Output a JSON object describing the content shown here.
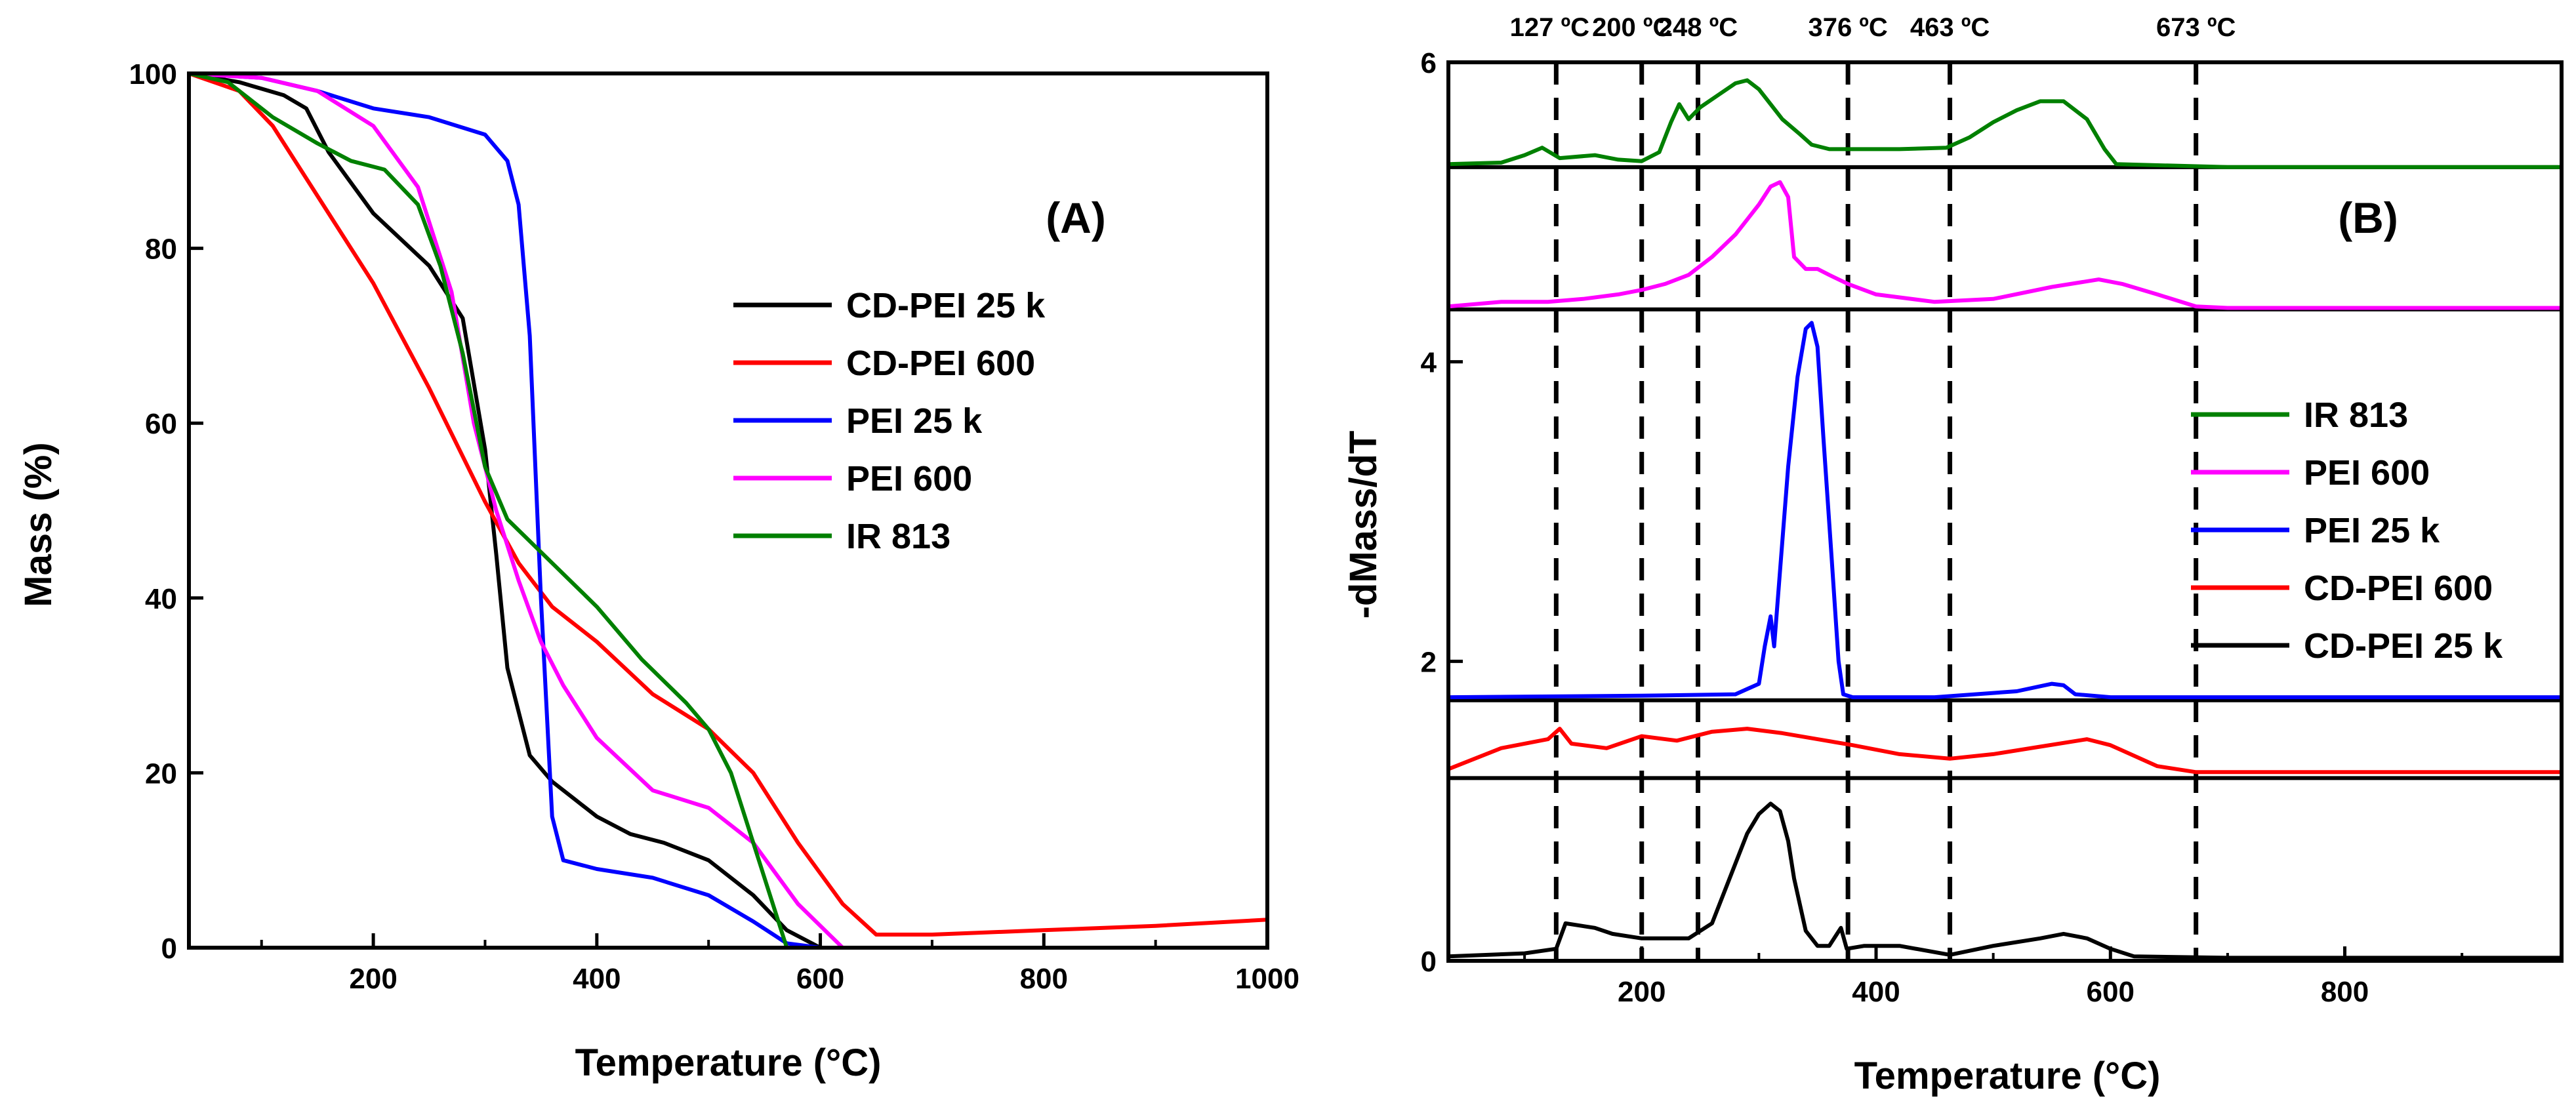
{
  "chart_data": [
    {
      "id": "A",
      "type": "line",
      "title": "",
      "panel_label": "(A)",
      "xlabel": "Temperature (°C)",
      "ylabel": "Mass (%)",
      "xlim": [
        35,
        1000
      ],
      "ylim": [
        0,
        100
      ],
      "xticks": [
        200,
        400,
        600,
        800,
        1000
      ],
      "yticks": [
        0,
        20,
        40,
        60,
        80,
        100
      ],
      "legend_position": "center-right",
      "series": [
        {
          "name": "CD-PEI 25 k",
          "color": "#000000",
          "x": [
            35,
            80,
            120,
            140,
            160,
            200,
            250,
            280,
            300,
            310,
            320,
            340,
            360,
            380,
            400,
            430,
            460,
            500,
            540,
            570,
            600
          ],
          "y": [
            100,
            99,
            97.5,
            96,
            91,
            84,
            78,
            72,
            57,
            45,
            32,
            22,
            19,
            17,
            15,
            13,
            12,
            10,
            6,
            2,
            0
          ]
        },
        {
          "name": "CD-PEI 600",
          "color": "#ff0000",
          "x": [
            35,
            80,
            110,
            140,
            200,
            250,
            300,
            330,
            360,
            400,
            450,
            500,
            540,
            580,
            620,
            650,
            680,
            700,
            800,
            900,
            1000
          ],
          "y": [
            100,
            98,
            94,
            88,
            76,
            64,
            51,
            44,
            39,
            35,
            29,
            25,
            20,
            12,
            5,
            1.5,
            1.5,
            1.5,
            2,
            2.5,
            3.2
          ],
          "label_points": []
        },
        {
          "name": "PEI 25 k",
          "color": "#0000ff",
          "x": [
            35,
            100,
            150,
            200,
            250,
            300,
            320,
            330,
            340,
            350,
            360,
            370,
            400,
            450,
            500,
            540,
            570,
            600
          ],
          "y": [
            100,
            99.5,
            98,
            96,
            95,
            93,
            90,
            85,
            70,
            40,
            15,
            10,
            9,
            8,
            6,
            3,
            0.5,
            0
          ]
        },
        {
          "name": "PEI 600",
          "color": "#ff00ff",
          "x": [
            35,
            100,
            150,
            200,
            240,
            270,
            290,
            310,
            330,
            350,
            370,
            400,
            450,
            500,
            540,
            580,
            620
          ],
          "y": [
            100,
            99.5,
            98,
            94,
            87,
            75,
            60,
            50,
            42,
            35,
            30,
            24,
            18,
            16,
            12,
            5,
            0
          ]
        },
        {
          "name": "IR 813",
          "color": "#008000",
          "x": [
            35,
            70,
            110,
            150,
            180,
            210,
            240,
            260,
            280,
            300,
            320,
            360,
            400,
            440,
            480,
            500,
            520,
            540,
            560,
            570
          ],
          "y": [
            100,
            99,
            95,
            92,
            90,
            89,
            85,
            78,
            68,
            55,
            49,
            44,
            39,
            33,
            28,
            25,
            20,
            12,
            4,
            0
          ]
        }
      ]
    },
    {
      "id": "B",
      "type": "line",
      "title": "",
      "panel_label": "(B)",
      "xlabel": "Temperature (°C)",
      "ylabel": "-dMass/dT",
      "xlim": [
        35,
        985
      ],
      "ylim": [
        0,
        6
      ],
      "xticks": [
        200,
        400,
        600,
        800
      ],
      "yticks": [
        0,
        2,
        4,
        6
      ],
      "legend_position": "right",
      "separator_lines_y": [
        1.22,
        1.74,
        4.35,
        5.3
      ],
      "dashed_lines": [
        {
          "x": 127,
          "label": "127 ºC"
        },
        {
          "x": 200,
          "label": "200 ºC"
        },
        {
          "x": 248,
          "label": "248 ºC"
        },
        {
          "x": 376,
          "label": "376 ºC"
        },
        {
          "x": 463,
          "label": "463 ºC"
        },
        {
          "x": 673,
          "label": "673  ºC"
        }
      ],
      "series": [
        {
          "name": "IR 813",
          "color": "#008000",
          "x": [
            35,
            80,
            100,
            115,
            130,
            160,
            180,
            200,
            215,
            225,
            232,
            240,
            250,
            265,
            280,
            290,
            300,
            310,
            320,
            335,
            345,
            360,
            380,
            420,
            460,
            480,
            500,
            520,
            540,
            560,
            580,
            595,
            605,
            700,
            985
          ],
          "y": [
            5.32,
            5.33,
            5.38,
            5.43,
            5.36,
            5.38,
            5.35,
            5.34,
            5.4,
            5.6,
            5.72,
            5.62,
            5.7,
            5.78,
            5.86,
            5.88,
            5.82,
            5.72,
            5.62,
            5.52,
            5.45,
            5.42,
            5.42,
            5.42,
            5.43,
            5.5,
            5.6,
            5.68,
            5.74,
            5.74,
            5.62,
            5.42,
            5.32,
            5.3,
            5.3
          ]
        },
        {
          "name": "PEI 600",
          "color": "#ff00ff",
          "x": [
            35,
            80,
            120,
            150,
            180,
            200,
            220,
            240,
            260,
            280,
            300,
            310,
            318,
            325,
            330,
            340,
            350,
            360,
            376,
            400,
            450,
            500,
            550,
            590,
            610,
            640,
            673,
            700,
            985
          ],
          "y": [
            4.37,
            4.4,
            4.4,
            4.42,
            4.45,
            4.48,
            4.52,
            4.58,
            4.7,
            4.85,
            5.05,
            5.17,
            5.2,
            5.1,
            4.7,
            4.62,
            4.62,
            4.58,
            4.52,
            4.45,
            4.4,
            4.42,
            4.5,
            4.55,
            4.52,
            4.45,
            4.37,
            4.36,
            4.36
          ]
        },
        {
          "name": "PEI 25 k",
          "color": "#0000ff",
          "x": [
            35,
            200,
            280,
            300,
            305,
            310,
            313,
            318,
            325,
            333,
            340,
            345,
            350,
            355,
            362,
            368,
            372,
            380,
            450,
            520,
            550,
            560,
            570,
            600,
            985
          ],
          "y": [
            1.76,
            1.77,
            1.78,
            1.85,
            2.1,
            2.3,
            2.1,
            2.6,
            3.3,
            3.9,
            4.22,
            4.26,
            4.1,
            3.5,
            2.7,
            2.0,
            1.78,
            1.76,
            1.76,
            1.8,
            1.85,
            1.84,
            1.78,
            1.76,
            1.76
          ]
        },
        {
          "name": "CD-PEI 600",
          "color": "#ff0000",
          "x": [
            35,
            80,
            120,
            130,
            140,
            170,
            200,
            230,
            260,
            290,
            320,
            350,
            380,
            420,
            463,
            500,
            540,
            580,
            600,
            640,
            673,
            700,
            985
          ],
          "y": [
            1.28,
            1.42,
            1.48,
            1.55,
            1.45,
            1.42,
            1.5,
            1.47,
            1.53,
            1.55,
            1.52,
            1.48,
            1.44,
            1.38,
            1.35,
            1.38,
            1.43,
            1.48,
            1.44,
            1.3,
            1.26,
            1.26,
            1.26
          ]
        },
        {
          "name": "CD-PEI 25 k",
          "color": "#000000",
          "x": [
            35,
            100,
            127,
            135,
            160,
            175,
            200,
            240,
            260,
            275,
            290,
            300,
            310,
            318,
            325,
            330,
            340,
            350,
            360,
            370,
            375,
            390,
            420,
            463,
            500,
            540,
            560,
            580,
            600,
            620,
            700,
            985
          ],
          "y": [
            0.03,
            0.05,
            0.08,
            0.25,
            0.22,
            0.18,
            0.15,
            0.15,
            0.25,
            0.55,
            0.85,
            0.98,
            1.05,
            1.0,
            0.8,
            0.55,
            0.2,
            0.1,
            0.1,
            0.22,
            0.08,
            0.1,
            0.1,
            0.04,
            0.1,
            0.15,
            0.18,
            0.15,
            0.08,
            0.03,
            0.02,
            0.02
          ]
        }
      ]
    }
  ]
}
